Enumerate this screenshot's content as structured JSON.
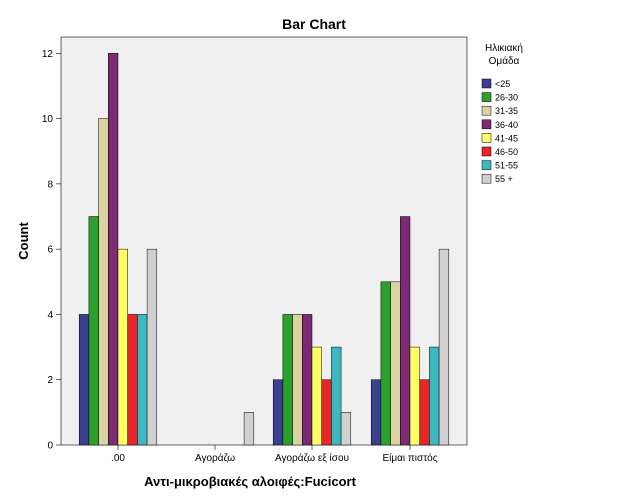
{
  "chart_data": {
    "type": "bar",
    "title": "Bar Chart",
    "xlabel": "Αντι-μικροβιακές αλοιφές:Fucicort",
    "ylabel": "Count",
    "ylim": [
      0,
      12.5
    ],
    "yticks": [
      0,
      2,
      4,
      6,
      8,
      10,
      12
    ],
    "grid": false,
    "legend_position": "right",
    "legend_title": [
      "Ηλικιακή",
      "Ομάδα"
    ],
    "categories": [
      ".00",
      "Αγοράζω",
      "Αγοράζω εξ ίσου",
      "Είμαι πιστός"
    ],
    "series": [
      {
        "name": "<25",
        "color": "#3a3f8f",
        "values": [
          4,
          0,
          2,
          2
        ]
      },
      {
        "name": "26-30",
        "color": "#2ca02c",
        "values": [
          7,
          0,
          4,
          5
        ]
      },
      {
        "name": "31-35",
        "color": "#d8d3a0",
        "values": [
          10,
          0,
          4,
          5
        ]
      },
      {
        "name": "36-40",
        "color": "#7b2a74",
        "values": [
          12,
          0,
          4,
          7
        ]
      },
      {
        "name": "41-45",
        "color": "#ffff66",
        "values": [
          6,
          0,
          3,
          3
        ]
      },
      {
        "name": "46-50",
        "color": "#e8262a",
        "values": [
          4,
          0,
          2,
          2
        ]
      },
      {
        "name": "51-55",
        "color": "#3cb8c0",
        "values": [
          4,
          0,
          3,
          3
        ]
      },
      {
        "name": "55 +",
        "color": "#d0d0d0",
        "values": [
          6,
          1,
          1,
          6
        ]
      }
    ]
  }
}
